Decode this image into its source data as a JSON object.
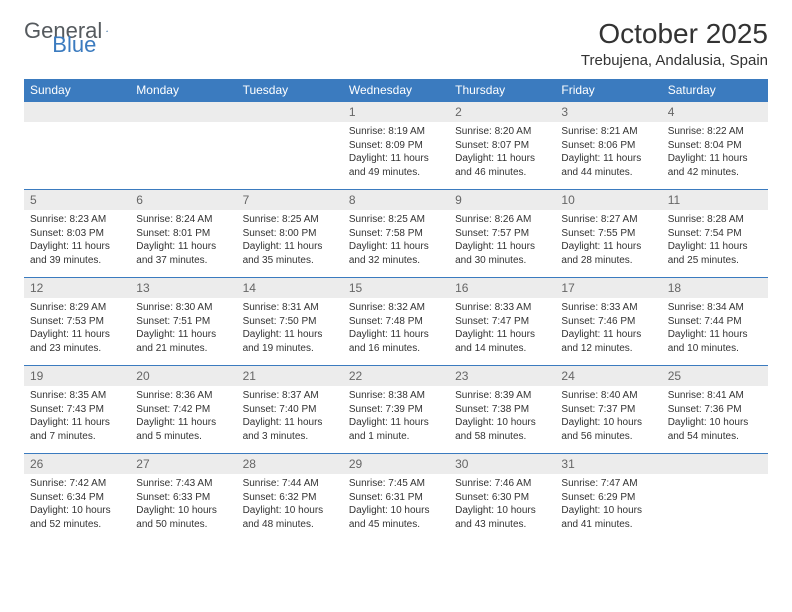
{
  "logo": {
    "text1": "General",
    "text2": "Blue"
  },
  "title": {
    "month": "October 2025",
    "location": "Trebujena, Andalusia, Spain"
  },
  "colors": {
    "header_bg": "#3b7bbf",
    "daynum_bg": "#ececec",
    "border": "#3b7bbf",
    "text": "#333333"
  },
  "day_headers": [
    "Sunday",
    "Monday",
    "Tuesday",
    "Wednesday",
    "Thursday",
    "Friday",
    "Saturday"
  ],
  "weeks": [
    [
      null,
      null,
      null,
      {
        "n": "1",
        "sr": "8:19 AM",
        "ss": "8:09 PM",
        "dl": "11 hours and 49 minutes."
      },
      {
        "n": "2",
        "sr": "8:20 AM",
        "ss": "8:07 PM",
        "dl": "11 hours and 46 minutes."
      },
      {
        "n": "3",
        "sr": "8:21 AM",
        "ss": "8:06 PM",
        "dl": "11 hours and 44 minutes."
      },
      {
        "n": "4",
        "sr": "8:22 AM",
        "ss": "8:04 PM",
        "dl": "11 hours and 42 minutes."
      }
    ],
    [
      {
        "n": "5",
        "sr": "8:23 AM",
        "ss": "8:03 PM",
        "dl": "11 hours and 39 minutes."
      },
      {
        "n": "6",
        "sr": "8:24 AM",
        "ss": "8:01 PM",
        "dl": "11 hours and 37 minutes."
      },
      {
        "n": "7",
        "sr": "8:25 AM",
        "ss": "8:00 PM",
        "dl": "11 hours and 35 minutes."
      },
      {
        "n": "8",
        "sr": "8:25 AM",
        "ss": "7:58 PM",
        "dl": "11 hours and 32 minutes."
      },
      {
        "n": "9",
        "sr": "8:26 AM",
        "ss": "7:57 PM",
        "dl": "11 hours and 30 minutes."
      },
      {
        "n": "10",
        "sr": "8:27 AM",
        "ss": "7:55 PM",
        "dl": "11 hours and 28 minutes."
      },
      {
        "n": "11",
        "sr": "8:28 AM",
        "ss": "7:54 PM",
        "dl": "11 hours and 25 minutes."
      }
    ],
    [
      {
        "n": "12",
        "sr": "8:29 AM",
        "ss": "7:53 PM",
        "dl": "11 hours and 23 minutes."
      },
      {
        "n": "13",
        "sr": "8:30 AM",
        "ss": "7:51 PM",
        "dl": "11 hours and 21 minutes."
      },
      {
        "n": "14",
        "sr": "8:31 AM",
        "ss": "7:50 PM",
        "dl": "11 hours and 19 minutes."
      },
      {
        "n": "15",
        "sr": "8:32 AM",
        "ss": "7:48 PM",
        "dl": "11 hours and 16 minutes."
      },
      {
        "n": "16",
        "sr": "8:33 AM",
        "ss": "7:47 PM",
        "dl": "11 hours and 14 minutes."
      },
      {
        "n": "17",
        "sr": "8:33 AM",
        "ss": "7:46 PM",
        "dl": "11 hours and 12 minutes."
      },
      {
        "n": "18",
        "sr": "8:34 AM",
        "ss": "7:44 PM",
        "dl": "11 hours and 10 minutes."
      }
    ],
    [
      {
        "n": "19",
        "sr": "8:35 AM",
        "ss": "7:43 PM",
        "dl": "11 hours and 7 minutes."
      },
      {
        "n": "20",
        "sr": "8:36 AM",
        "ss": "7:42 PM",
        "dl": "11 hours and 5 minutes."
      },
      {
        "n": "21",
        "sr": "8:37 AM",
        "ss": "7:40 PM",
        "dl": "11 hours and 3 minutes."
      },
      {
        "n": "22",
        "sr": "8:38 AM",
        "ss": "7:39 PM",
        "dl": "11 hours and 1 minute."
      },
      {
        "n": "23",
        "sr": "8:39 AM",
        "ss": "7:38 PM",
        "dl": "10 hours and 58 minutes."
      },
      {
        "n": "24",
        "sr": "8:40 AM",
        "ss": "7:37 PM",
        "dl": "10 hours and 56 minutes."
      },
      {
        "n": "25",
        "sr": "8:41 AM",
        "ss": "7:36 PM",
        "dl": "10 hours and 54 minutes."
      }
    ],
    [
      {
        "n": "26",
        "sr": "7:42 AM",
        "ss": "6:34 PM",
        "dl": "10 hours and 52 minutes."
      },
      {
        "n": "27",
        "sr": "7:43 AM",
        "ss": "6:33 PM",
        "dl": "10 hours and 50 minutes."
      },
      {
        "n": "28",
        "sr": "7:44 AM",
        "ss": "6:32 PM",
        "dl": "10 hours and 48 minutes."
      },
      {
        "n": "29",
        "sr": "7:45 AM",
        "ss": "6:31 PM",
        "dl": "10 hours and 45 minutes."
      },
      {
        "n": "30",
        "sr": "7:46 AM",
        "ss": "6:30 PM",
        "dl": "10 hours and 43 minutes."
      },
      {
        "n": "31",
        "sr": "7:47 AM",
        "ss": "6:29 PM",
        "dl": "10 hours and 41 minutes."
      },
      null
    ]
  ],
  "labels": {
    "sunrise": "Sunrise:",
    "sunset": "Sunset:",
    "daylight": "Daylight:"
  }
}
